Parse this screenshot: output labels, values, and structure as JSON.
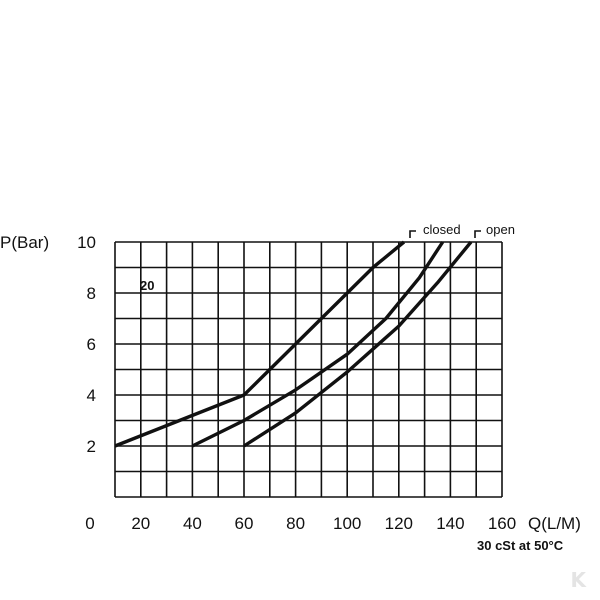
{
  "chart_data": {
    "type": "line",
    "title": "",
    "xlabel": "Q(L/M)",
    "ylabel": "P(Bar)",
    "xlim": [
      0,
      160
    ],
    "ylim": [
      0,
      10
    ],
    "x_ticks": [
      0,
      20,
      40,
      60,
      80,
      100,
      120,
      140,
      160
    ],
    "y_ticks": [
      2,
      4,
      6,
      8,
      10
    ],
    "grid": true,
    "x_grid_step": 10,
    "y_grid_step": 1,
    "colors": {
      "line": "#111111",
      "grid": "#111111"
    },
    "annotations": {
      "model": "20",
      "closed_label": "closed",
      "open_label": "open",
      "condition": "30 cSt at 50°C"
    },
    "series": [
      {
        "x": [
          10,
          60,
          70,
          80,
          90,
          100,
          110,
          122
        ],
        "y": [
          2,
          4,
          5,
          6,
          7,
          8,
          9,
          10
        ]
      },
      {
        "x": [
          40,
          60,
          80,
          100,
          115,
          128,
          137
        ],
        "y": [
          2,
          3,
          4.2,
          5.6,
          7,
          8.6,
          10
        ]
      },
      {
        "x": [
          60,
          80,
          100,
          120,
          135,
          148
        ],
        "y": [
          2,
          3.3,
          4.9,
          6.7,
          8.4,
          10
        ]
      }
    ]
  }
}
